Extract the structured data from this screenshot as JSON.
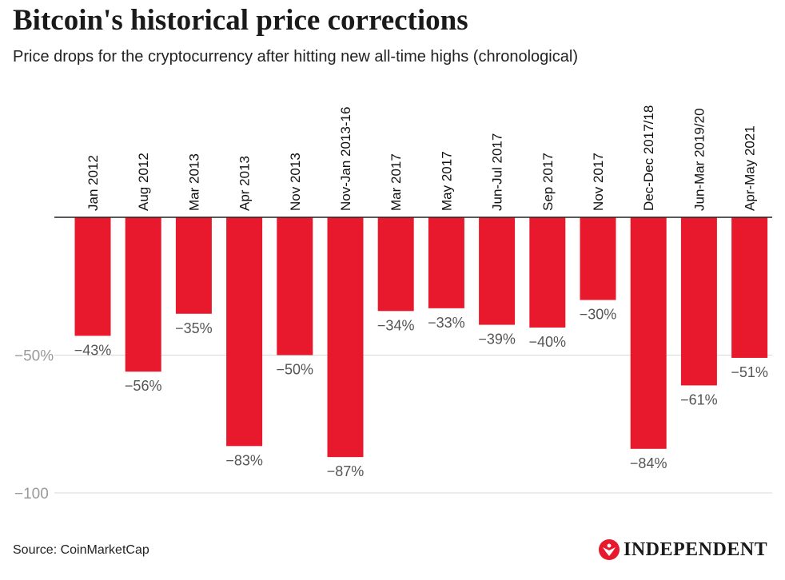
{
  "title": "Bitcoin's historical price corrections",
  "subtitle": "Price drops for the cryptocurrency after hitting new all-time highs (chronological)",
  "source": "Source: CoinMarketCap",
  "publisher": "INDEPENDENT",
  "colors": {
    "bar": "#e8192c",
    "axis": "#222222",
    "grid": "#d9d9d9",
    "tick_label": "#9a9a9a",
    "data_label": "#555555"
  },
  "chart_data": {
    "type": "bar",
    "title": "Bitcoin's historical price corrections",
    "subtitle": "Price drops for the cryptocurrency after hitting new all-time highs (chronological)",
    "categories": [
      "Jan 2012",
      "Aug 2012",
      "Mar 2013",
      "Apr 2013",
      "Nov 2013",
      "Nov-Jan 2013-16",
      "Mar 2017",
      "May 2017",
      "Jun-Jul 2017",
      "Sep 2017",
      "Nov 2017",
      "Dec-Dec 2017/18",
      "Jun-Mar 2019/20",
      "Apr-May 2021"
    ],
    "values": [
      -43,
      -56,
      -35,
      -83,
      -50,
      -87,
      -34,
      -33,
      -39,
      -40,
      -30,
      -84,
      -61,
      -51
    ],
    "data_labels": [
      "−43%",
      "−56%",
      "−35%",
      "−83%",
      "−50%",
      "−87%",
      "−34%",
      "−33%",
      "−39%",
      "−40%",
      "−30%",
      "−84%",
      "−61%",
      "−51%"
    ],
    "yticks": [
      -50,
      -100
    ],
    "ytick_labels": [
      "−50%",
      "−100"
    ],
    "ylim": [
      -100,
      0
    ],
    "xlabel": "",
    "ylabel": "",
    "grid": true,
    "legend": "none"
  }
}
